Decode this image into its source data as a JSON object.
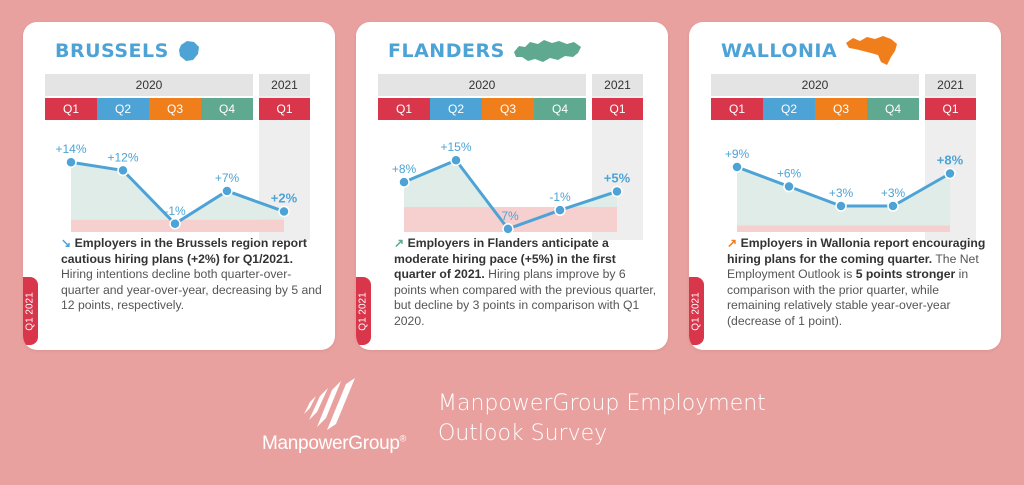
{
  "colors": {
    "q1": "#d9364b",
    "q2": "#4da3d6",
    "q3": "#f07f1b",
    "q4": "#5fa990",
    "header_bg": "#e4e4e4",
    "line": "#4da3d6",
    "title": "#4da3d6",
    "green_fill": "#dfece7",
    "red_fill": "#f6cfcf",
    "column_2021": "#eeeeee"
  },
  "headers": {
    "year_2020": "2020",
    "year_2021": "2021",
    "quarters": [
      "Q1",
      "Q2",
      "Q3",
      "Q4"
    ],
    "q_2021": "Q1"
  },
  "regions": [
    {
      "name": "BRUSSELS",
      "map_color": "#4da3d6",
      "arrow": "↘",
      "arrow_color": "#4da3d6",
      "desc_bold": "Employers in the Brussels region report cautious hiring plans (+2%) for Q1/2021.",
      "desc_text": " Hiring intentions decline both quarter-over-quarter and year-over-year, decreasing by 5 and 12 points, respectively.",
      "tab": "Q1 2021"
    },
    {
      "name": "FLANDERS",
      "map_color": "#5fa990",
      "arrow": "↗",
      "arrow_color": "#5fa990",
      "desc_bold": "Employers in Flanders anticipate a moderate hiring pace (+5%) in the first quarter of 2021.",
      "desc_text": " Hiring plans improve by 6 points when compared with the previous quarter, but decline by 3 points in comparison with Q1 2020.",
      "tab": "Q1 2021"
    },
    {
      "name": "WALLONIA",
      "map_color": "#f07f1b",
      "arrow": "↗",
      "arrow_color": "#f07f1b",
      "desc_bold": "Employers in Wallonia report encouraging hiring plans for the coming quarter.",
      "desc_text_1": " The Net Employment Outlook is ",
      "desc_bold_2": "5 points stronger",
      "desc_text_2": " in comparison with the prior quarter, while remaining relatively stable year-over-year (decrease of 1 point).",
      "tab": "Q1 2021"
    }
  ],
  "chart_data": [
    {
      "type": "line",
      "region": "BRUSSELS",
      "categories": [
        "Q1 2020",
        "Q2 2020",
        "Q3 2020",
        "Q4 2020",
        "Q1 2021"
      ],
      "values": [
        14,
        12,
        -1,
        7,
        2
      ],
      "labels": [
        "+14%",
        "+12%",
        "-1%",
        "+7%",
        "+2%"
      ],
      "ylim": [
        -3,
        16
      ]
    },
    {
      "type": "line",
      "region": "FLANDERS",
      "categories": [
        "Q1 2020",
        "Q2 2020",
        "Q3 2020",
        "Q4 2020",
        "Q1 2021"
      ],
      "values": [
        8,
        15,
        -7,
        -1,
        5
      ],
      "labels": [
        "+8%",
        "+15%",
        "-7%",
        "-1%",
        "+5%"
      ],
      "ylim": [
        -8,
        17
      ]
    },
    {
      "type": "line",
      "region": "WALLONIA",
      "categories": [
        "Q1 2020",
        "Q2 2020",
        "Q3 2020",
        "Q4 2020",
        "Q1 2021"
      ],
      "values": [
        9,
        6,
        3,
        3,
        8
      ],
      "labels": [
        "+9%",
        "+6%",
        "+3%",
        "+3%",
        "+8%"
      ],
      "ylim": [
        -1,
        11
      ]
    }
  ],
  "footer": {
    "logo_text": "ManpowerGroup",
    "logo_reg": "®",
    "title": "ManpowerGroup Employment\nOutlook Survey"
  }
}
